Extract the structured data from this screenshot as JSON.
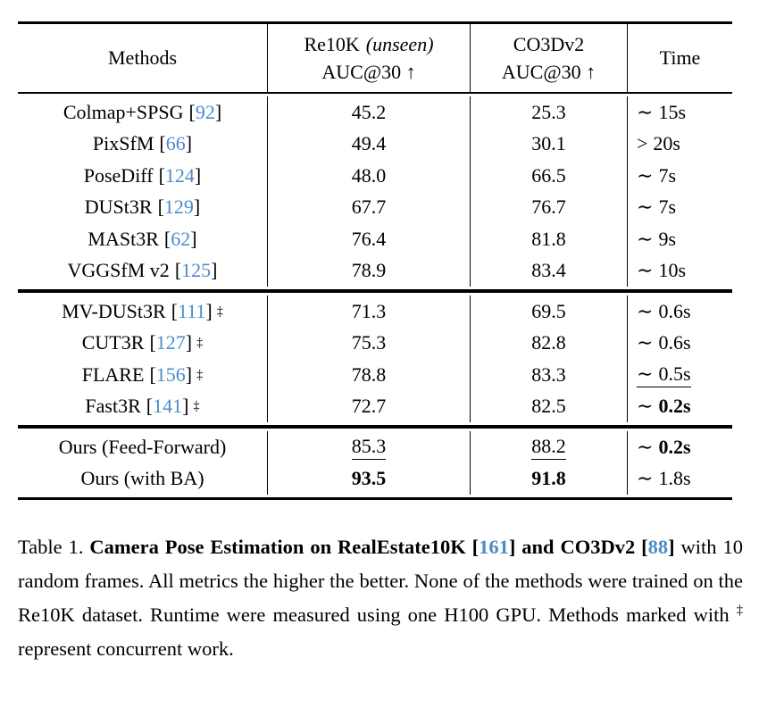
{
  "colors": {
    "cite_blue": "#4C8BC9",
    "text": "#000000",
    "rule": "#000000"
  },
  "table": {
    "header": {
      "methods": "Methods",
      "col1_title": "Re10K",
      "col1_note": "(unseen)",
      "col1_sub": "AUC@30 ↑",
      "col2_title": "CO3Dv2",
      "col2_sub": "AUC@30 ↑",
      "time": "Time"
    },
    "cite_open": "[",
    "cite_close": "]",
    "dagger_symbol": "‡",
    "sections": [
      {
        "rows": [
          {
            "name": "Colmap+SPSG",
            "cite": "92",
            "v1": {
              "t": "45.2"
            },
            "v2": {
              "t": "25.3"
            },
            "time": {
              "pre": "∼",
              "t": "15s"
            }
          },
          {
            "name": "PixSfM",
            "cite": "66",
            "v1": {
              "t": "49.4"
            },
            "v2": {
              "t": "30.1"
            },
            "time": {
              "pre": ">",
              "t": "20s"
            }
          },
          {
            "name": "PoseDiff",
            "cite": "124",
            "v1": {
              "t": "48.0"
            },
            "v2": {
              "t": "66.5"
            },
            "time": {
              "pre": "∼",
              "t": "7s"
            }
          },
          {
            "name": "DUSt3R",
            "cite": "129",
            "v1": {
              "t": "67.7"
            },
            "v2": {
              "t": "76.7"
            },
            "time": {
              "pre": "∼",
              "t": "7s"
            }
          },
          {
            "name": "MASt3R",
            "cite": "62",
            "v1": {
              "t": "76.4"
            },
            "v2": {
              "t": "81.8"
            },
            "time": {
              "pre": "∼",
              "t": "9s"
            }
          },
          {
            "name": "VGGSfM v2",
            "cite": "125",
            "v1": {
              "t": "78.9"
            },
            "v2": {
              "t": "83.4"
            },
            "time": {
              "pre": "∼",
              "t": "10s"
            }
          }
        ]
      },
      {
        "rows": [
          {
            "name": "MV-DUSt3R",
            "cite": "111",
            "dagger": true,
            "v1": {
              "t": "71.3"
            },
            "v2": {
              "t": "69.5"
            },
            "time": {
              "pre": "∼",
              "t": "0.6s"
            }
          },
          {
            "name": "CUT3R",
            "cite": "127",
            "dagger": true,
            "v1": {
              "t": "75.3"
            },
            "v2": {
              "t": "82.8"
            },
            "time": {
              "pre": "∼",
              "t": "0.6s"
            }
          },
          {
            "name": "FLARE",
            "cite": "156",
            "dagger": true,
            "v1": {
              "t": "78.8"
            },
            "v2": {
              "t": "83.3"
            },
            "time": {
              "pre": "∼",
              "t": "0.5s",
              "underline": true
            }
          },
          {
            "name": "Fast3R",
            "cite": "141",
            "dagger": true,
            "v1": {
              "t": "72.7"
            },
            "v2": {
              "t": "82.5"
            },
            "time": {
              "pre": "∼",
              "t": "0.2s",
              "bold": true
            }
          }
        ]
      },
      {
        "rows": [
          {
            "name": "Ours (Feed-Forward)",
            "v1": {
              "t": "85.3",
              "underline": true
            },
            "v2": {
              "t": "88.2",
              "underline": true
            },
            "time": {
              "pre": "∼",
              "t": "0.2s",
              "bold": true
            }
          },
          {
            "name": "Ours (with BA)",
            "v1": {
              "t": "93.5",
              "bold": true
            },
            "v2": {
              "t": "91.8",
              "bold": true
            },
            "time": {
              "pre": "∼",
              "t": "1.8s"
            }
          }
        ]
      }
    ]
  },
  "caption": {
    "segments": [
      {
        "t": "Table 1. "
      },
      {
        "t": "Camera Pose Estimation on RealEstate10K [",
        "bold": true
      },
      {
        "t": "161",
        "bold": true,
        "cite": true
      },
      {
        "t": "] and CO3Dv2 [",
        "bold": true
      },
      {
        "t": "88",
        "bold": true,
        "cite": true
      },
      {
        "t": "]",
        "bold": true
      },
      {
        "t": " with 10 random frames. All metrics the higher the better. None of the methods were trained on the Re10K dataset. Runtime were measured using one H100 GPU. Methods marked with "
      },
      {
        "t": "‡",
        "sup": true
      },
      {
        "t": " represent concurrent work."
      }
    ]
  }
}
